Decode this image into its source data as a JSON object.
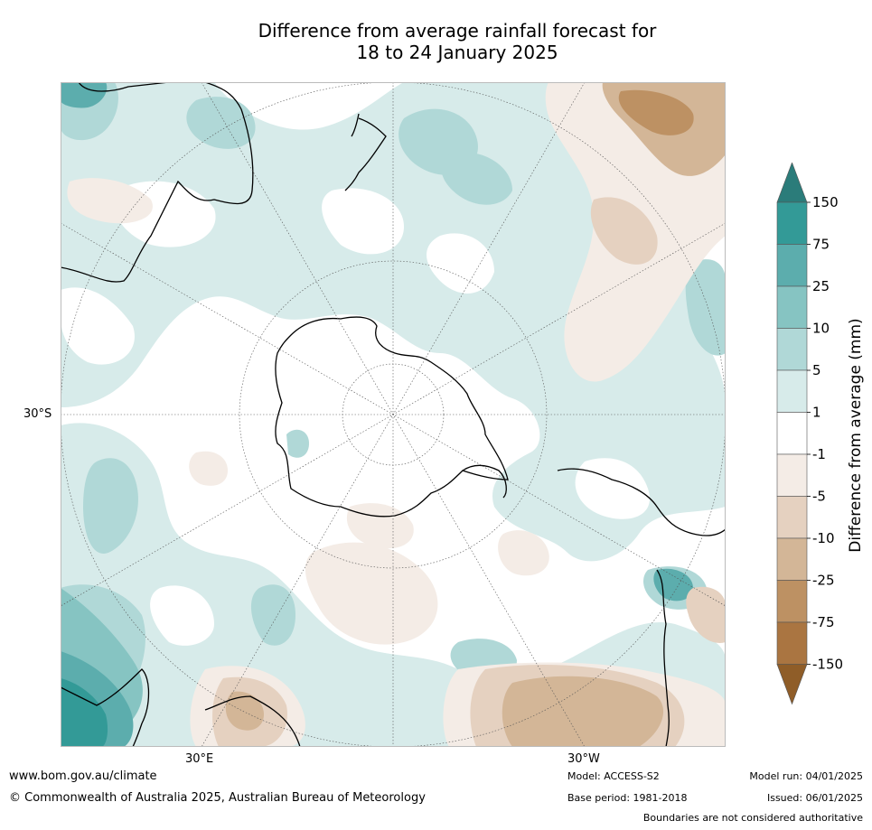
{
  "title": {
    "line1": "Difference from average rainfall forecast for",
    "line2": "18 to 24 January 2025"
  },
  "map": {
    "projection": "south-polar",
    "lat_labels": [
      "30°S"
    ],
    "lon_labels": [
      "30°E",
      "30°W"
    ]
  },
  "colorbar": {
    "label": "Difference from average (mm)",
    "ticks": [
      "150",
      "75",
      "25",
      "10",
      "5",
      "1",
      "-1",
      "-5",
      "-10",
      "-25",
      "-75",
      "-150"
    ],
    "colors": [
      "#2b7c7a",
      "#339a97",
      "#5cadad",
      "#86c4c2",
      "#b0d8d7",
      "#d7ebea",
      "#ffffff",
      "#f4ece6",
      "#e5d1c0",
      "#d3b697",
      "#bd9163",
      "#aa7541",
      "#8f5d28"
    ]
  },
  "footer": {
    "website": "www.bom.gov.au/climate",
    "copyright": "© Commonwealth of Australia 2025, Australian Bureau of Meteorology",
    "model": "Model: ACCESS-S2",
    "base_period": "Base period: 1981-2018",
    "model_run": "Model run: 04/01/2025",
    "issued": "Issued: 06/01/2025",
    "disclaimer": "Boundaries are not considered authoritative"
  }
}
